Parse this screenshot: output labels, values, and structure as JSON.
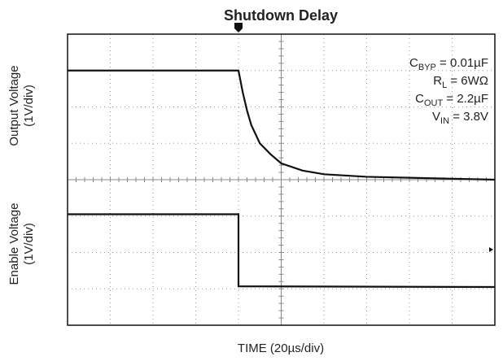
{
  "chart_data": {
    "type": "line",
    "title": "Shutdown Delay",
    "xlabel": "TIME (20µs/div)",
    "ylabels": [
      [
        "Output Voltage",
        "(1V/div)"
      ],
      [
        "Enable Voltage",
        "(1V/div)"
      ]
    ],
    "xlim": [
      0,
      200
    ],
    "ylim": [
      0,
      8
    ],
    "xticks": [
      0,
      20,
      40,
      60,
      80,
      100,
      120,
      140,
      160,
      180,
      200
    ],
    "yticks": [
      0,
      1,
      2,
      3,
      4,
      5,
      6,
      7,
      8
    ],
    "grid": true,
    "annotations": [
      {
        "main": "C",
        "sub": "BYP",
        "rest": " = 0.01µF"
      },
      {
        "main": "R",
        "sub": "L",
        "rest": " = 6WΩ"
      },
      {
        "main": "C",
        "sub": "OUT",
        "rest": " = 2.2µF"
      },
      {
        "main": "V",
        "sub": "IN",
        "rest": " = 3.8V"
      }
    ],
    "series": [
      {
        "color": "#111111",
        "x": [
          0,
          80,
          82,
          84,
          86,
          90,
          95,
          100,
          110,
          120,
          140,
          170,
          200
        ],
        "values": [
          7,
          7,
          6.4,
          5.9,
          5.5,
          5.0,
          4.7,
          4.45,
          4.25,
          4.15,
          4.08,
          4.04,
          4.0
        ]
      },
      {
        "color": "#111111",
        "x": [
          0,
          80,
          80,
          200
        ],
        "values": [
          3.05,
          3.05,
          1.07,
          1.05
        ]
      }
    ]
  }
}
